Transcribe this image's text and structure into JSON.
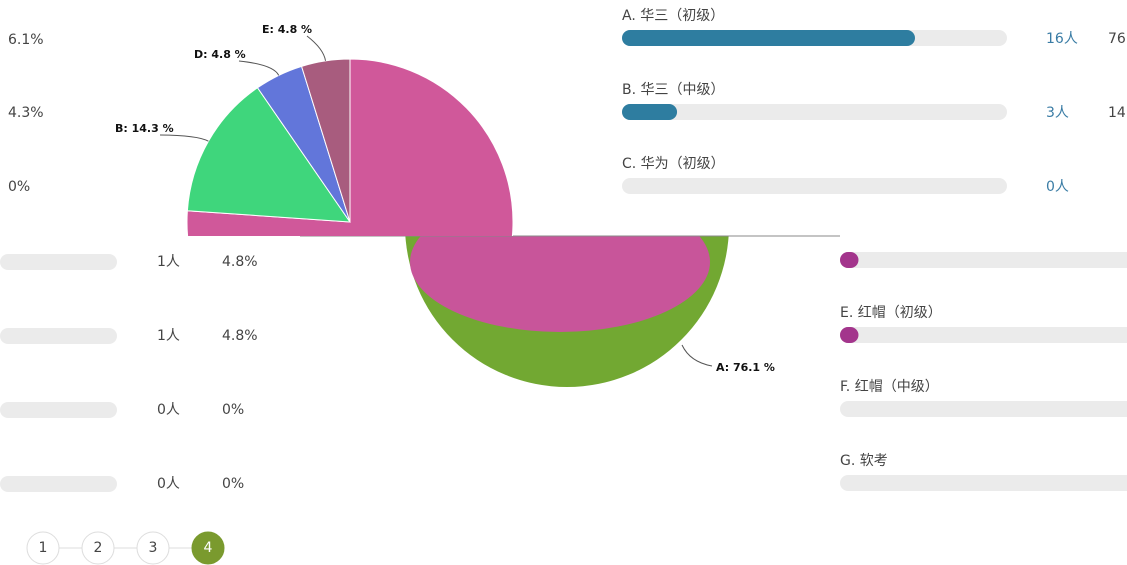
{
  "left_column": {
    "percent_labels": [
      "6.1%",
      "4.3%",
      "0%"
    ],
    "rows": [
      {
        "count": "1人",
        "percent": "4.8%"
      },
      {
        "count": "1人",
        "percent": "4.8%"
      },
      {
        "count": "0人",
        "percent": "0%"
      },
      {
        "count": "0人",
        "percent": "0%"
      }
    ]
  },
  "pie": {
    "slices": [
      {
        "label": "A: 76.1 %",
        "value": 76.1,
        "color": "#d0589a"
      },
      {
        "label": "B: 14.3 %",
        "value": 14.3,
        "color": "#3fd67c"
      },
      {
        "label": "D: 4.8 %",
        "value": 4.8,
        "color": "#6276da"
      },
      {
        "label": "E: 4.8 %",
        "value": 4.8,
        "color": "#a85c7e"
      }
    ]
  },
  "right_top": {
    "color": "#2e7da0",
    "options": [
      {
        "label": "A. 华三（初级）",
        "count": "16人",
        "percent": "76",
        "fill": 76.1
      },
      {
        "label": "B. 华三（中级）",
        "count": "3人",
        "percent": "14",
        "fill": 14.3
      },
      {
        "label": "C. 华为（初级）",
        "count": "0人",
        "fill": 0
      }
    ]
  },
  "right_bottom": {
    "color": "#a3358c",
    "options": [
      {
        "fill": 4.8
      },
      {
        "label": "E. 红帽（初级）",
        "fill": 4.8
      },
      {
        "label": "F. 红帽（中级）",
        "fill": 0
      },
      {
        "label": "G. 软考",
        "fill": 0
      }
    ]
  },
  "pagination": {
    "pages": [
      "1",
      "2",
      "3",
      "4"
    ],
    "active_index": 3
  }
}
